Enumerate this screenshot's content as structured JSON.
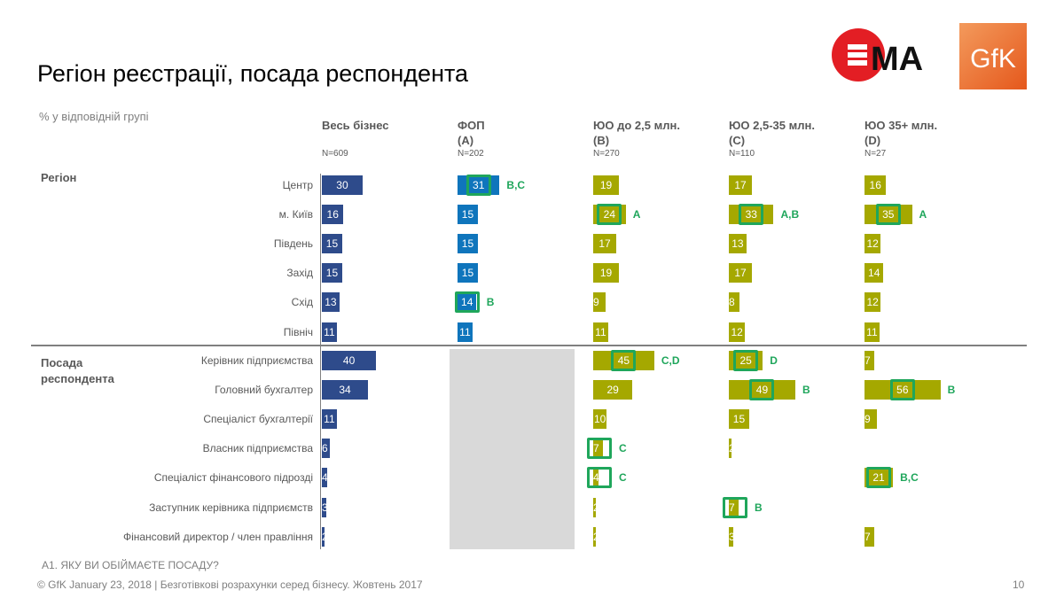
{
  "header": {
    "title": "Регіон реєстрації, посада респондента",
    "subtitle": "% у відповідній групі",
    "logos": {
      "ema": "ЕМА",
      "gfk": "GfK"
    }
  },
  "colors": {
    "total_bar": "#2e4b8b",
    "fop_bar": "#0f75bc",
    "yuo_bar": "#a5a800",
    "significance": "#1fa65b",
    "na_block": "#d9d9d9"
  },
  "chart_data": {
    "type": "bar",
    "orientation": "horizontal",
    "title": "Регіон реєстрації, посада респондента",
    "unit": "% у відповідній групі",
    "columns": [
      {
        "key": "total",
        "label": "Весь бізнес",
        "letter": "",
        "n": "N=609"
      },
      {
        "key": "fop",
        "label": "ФОП",
        "letter": "(A)",
        "n": "N=202"
      },
      {
        "key": "b",
        "label": "ЮО до 2,5 млн.",
        "letter": "(B)",
        "n": "N=270"
      },
      {
        "key": "c",
        "label": "ЮО 2,5-35 млн.",
        "letter": "(C)",
        "n": "N=110"
      },
      {
        "key": "d",
        "label": "ЮО 35+ млн.",
        "letter": "(D)",
        "n": "N=27"
      }
    ],
    "sections": [
      {
        "label": "Регіон",
        "rows": [
          {
            "label": "Центр",
            "values": [
              30,
              31,
              19,
              17,
              16
            ],
            "sig": [
              null,
              "B,C",
              null,
              null,
              null
            ]
          },
          {
            "label": "м. Київ",
            "values": [
              16,
              15,
              24,
              33,
              35
            ],
            "sig": [
              null,
              null,
              "A",
              "A,B",
              "A"
            ]
          },
          {
            "label": "Південь",
            "values": [
              15,
              15,
              17,
              13,
              12
            ],
            "sig": [
              null,
              null,
              null,
              null,
              null
            ]
          },
          {
            "label": "Захід",
            "values": [
              15,
              15,
              19,
              17,
              14
            ],
            "sig": [
              null,
              null,
              null,
              null,
              null
            ]
          },
          {
            "label": "Схід",
            "values": [
              13,
              14,
              9,
              8,
              12
            ],
            "sig": [
              null,
              "B",
              null,
              null,
              null
            ]
          },
          {
            "label": "Північ",
            "values": [
              11,
              11,
              11,
              12,
              11
            ],
            "sig": [
              null,
              null,
              null,
              null,
              null
            ]
          }
        ]
      },
      {
        "label": "Посада\nреспондента",
        "rows": [
          {
            "label": "Керівник підприємства",
            "values": [
              40,
              null,
              45,
              25,
              7
            ],
            "sig": [
              null,
              null,
              "C,D",
              "D",
              null
            ]
          },
          {
            "label": "Головний бухгалтер",
            "values": [
              34,
              null,
              29,
              49,
              56
            ],
            "sig": [
              null,
              null,
              null,
              "B",
              "B"
            ]
          },
          {
            "label": "Спеціаліст бухгалтерії",
            "values": [
              11,
              null,
              10,
              15,
              9
            ],
            "sig": [
              null,
              null,
              null,
              null,
              null
            ]
          },
          {
            "label": "Власник підприємства",
            "values": [
              6,
              null,
              7,
              2,
              null
            ],
            "sig": [
              null,
              null,
              "C",
              null,
              null
            ]
          },
          {
            "label": "Спеціаліст фінансового підрозді",
            "values": [
              4,
              null,
              4,
              null,
              21
            ],
            "sig": [
              null,
              null,
              "C",
              null,
              "B,C"
            ]
          },
          {
            "label": "Заступник керівника підприємств",
            "values": [
              3,
              null,
              2,
              7,
              null
            ],
            "sig": [
              null,
              null,
              null,
              "B",
              null
            ]
          },
          {
            "label": "Фінансовий директор / член правління",
            "values": [
              2,
              null,
              2,
              3,
              7
            ],
            "sig": [
              null,
              null,
              null,
              null,
              null
            ]
          }
        ]
      }
    ],
    "xlim": [
      0,
      100
    ],
    "grid": false,
    "legend": "none"
  },
  "footer": {
    "question": "А1. ЯКУ ВИ ОБІЙМАЄТЕ ПОСАДУ?",
    "source": "© GfK January 23, 2018 | Безготівкові розрахунки серед бізнесу. Жовтень 2017",
    "page": "10"
  }
}
